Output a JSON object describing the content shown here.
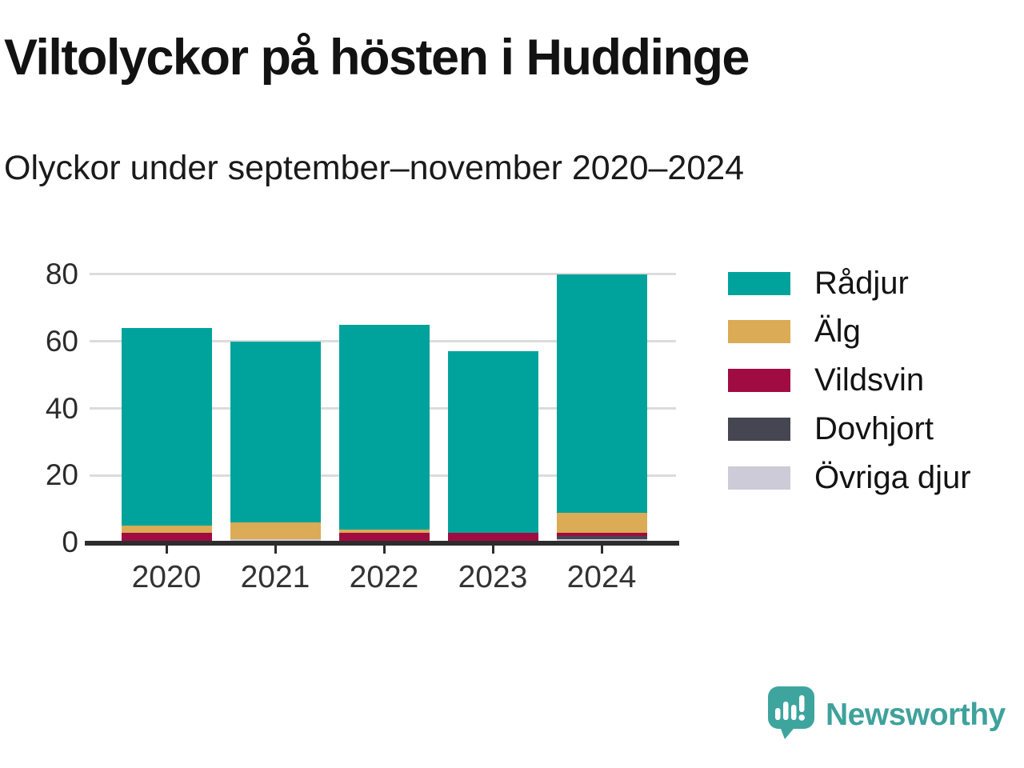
{
  "chart_data": {
    "type": "bar",
    "stacked": true,
    "title": "Viltolyckor på hösten i Huddinge",
    "subtitle": "Olyckor under september–november 2020–2024",
    "categories": [
      "2020",
      "2021",
      "2022",
      "2023",
      "2024"
    ],
    "series": [
      {
        "name": "Rådjur",
        "color": "#00a39b",
        "values": [
          59,
          54,
          61,
          54,
          71
        ]
      },
      {
        "name": "Älg",
        "color": "#dbab55",
        "values": [
          2,
          5,
          1,
          0,
          6
        ]
      },
      {
        "name": "Vildsvin",
        "color": "#a00c42",
        "values": [
          3,
          0,
          3,
          3,
          1
        ]
      },
      {
        "name": "Dovhjort",
        "color": "#464552",
        "values": [
          0,
          0,
          0,
          0,
          1
        ]
      },
      {
        "name": "Övriga djur",
        "color": "#cccbd7",
        "values": [
          0,
          1,
          0,
          0,
          1
        ]
      }
    ],
    "totals": [
      64,
      60,
      65,
      57,
      80
    ],
    "yticks": [
      0,
      20,
      40,
      60,
      80
    ],
    "ylim": [
      0,
      84
    ],
    "xlabel": "",
    "ylabel": "",
    "grid": "horizontal",
    "legend_position": "right",
    "stack_order_bottom_to_top": [
      "Övriga djur",
      "Dovhjort",
      "Vildsvin",
      "Älg",
      "Rådjur"
    ]
  },
  "footer": {
    "brand": "Newsworthy",
    "logo_icon": "newsworthy-speech-bubble-chart-icon"
  },
  "colors": {
    "axis": "#2d2d2d",
    "gridline": "#dcdcdc",
    "tick_text": "#333333",
    "brand_teal": "#3ea29b"
  }
}
